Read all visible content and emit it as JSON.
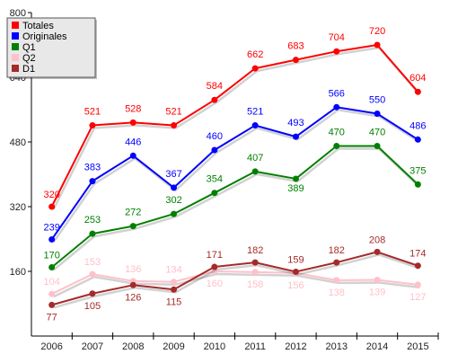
{
  "chart_data": {
    "type": "line",
    "x": [
      "2006",
      "2007",
      "2008",
      "2009",
      "2010",
      "2011",
      "2012",
      "2013",
      "2014",
      "2015"
    ],
    "ylim": [
      0,
      800
    ],
    "yticks": [
      160,
      320,
      480,
      640,
      800
    ],
    "grid": false,
    "legend_position": "top-left",
    "series": [
      {
        "name": "Totales",
        "color": "#ff0000",
        "values": [
          320,
          521,
          528,
          521,
          584,
          662,
          683,
          704,
          720,
          604
        ]
      },
      {
        "name": "Originales",
        "color": "#0000ff",
        "values": [
          239,
          383,
          446,
          367,
          460,
          521,
          493,
          566,
          550,
          486
        ]
      },
      {
        "name": "Q1",
        "color": "#008000",
        "values": [
          170,
          253,
          272,
          302,
          354,
          407,
          389,
          470,
          470,
          375
        ]
      },
      {
        "name": "Q2",
        "color": "#ffc0cb",
        "values": [
          104,
          153,
          136,
          134,
          160,
          158,
          156,
          138,
          139,
          127
        ]
      },
      {
        "name": "D1",
        "color": "#a52a2a",
        "values": [
          77,
          105,
          126,
          115,
          171,
          182,
          159,
          182,
          208,
          174
        ]
      }
    ]
  }
}
